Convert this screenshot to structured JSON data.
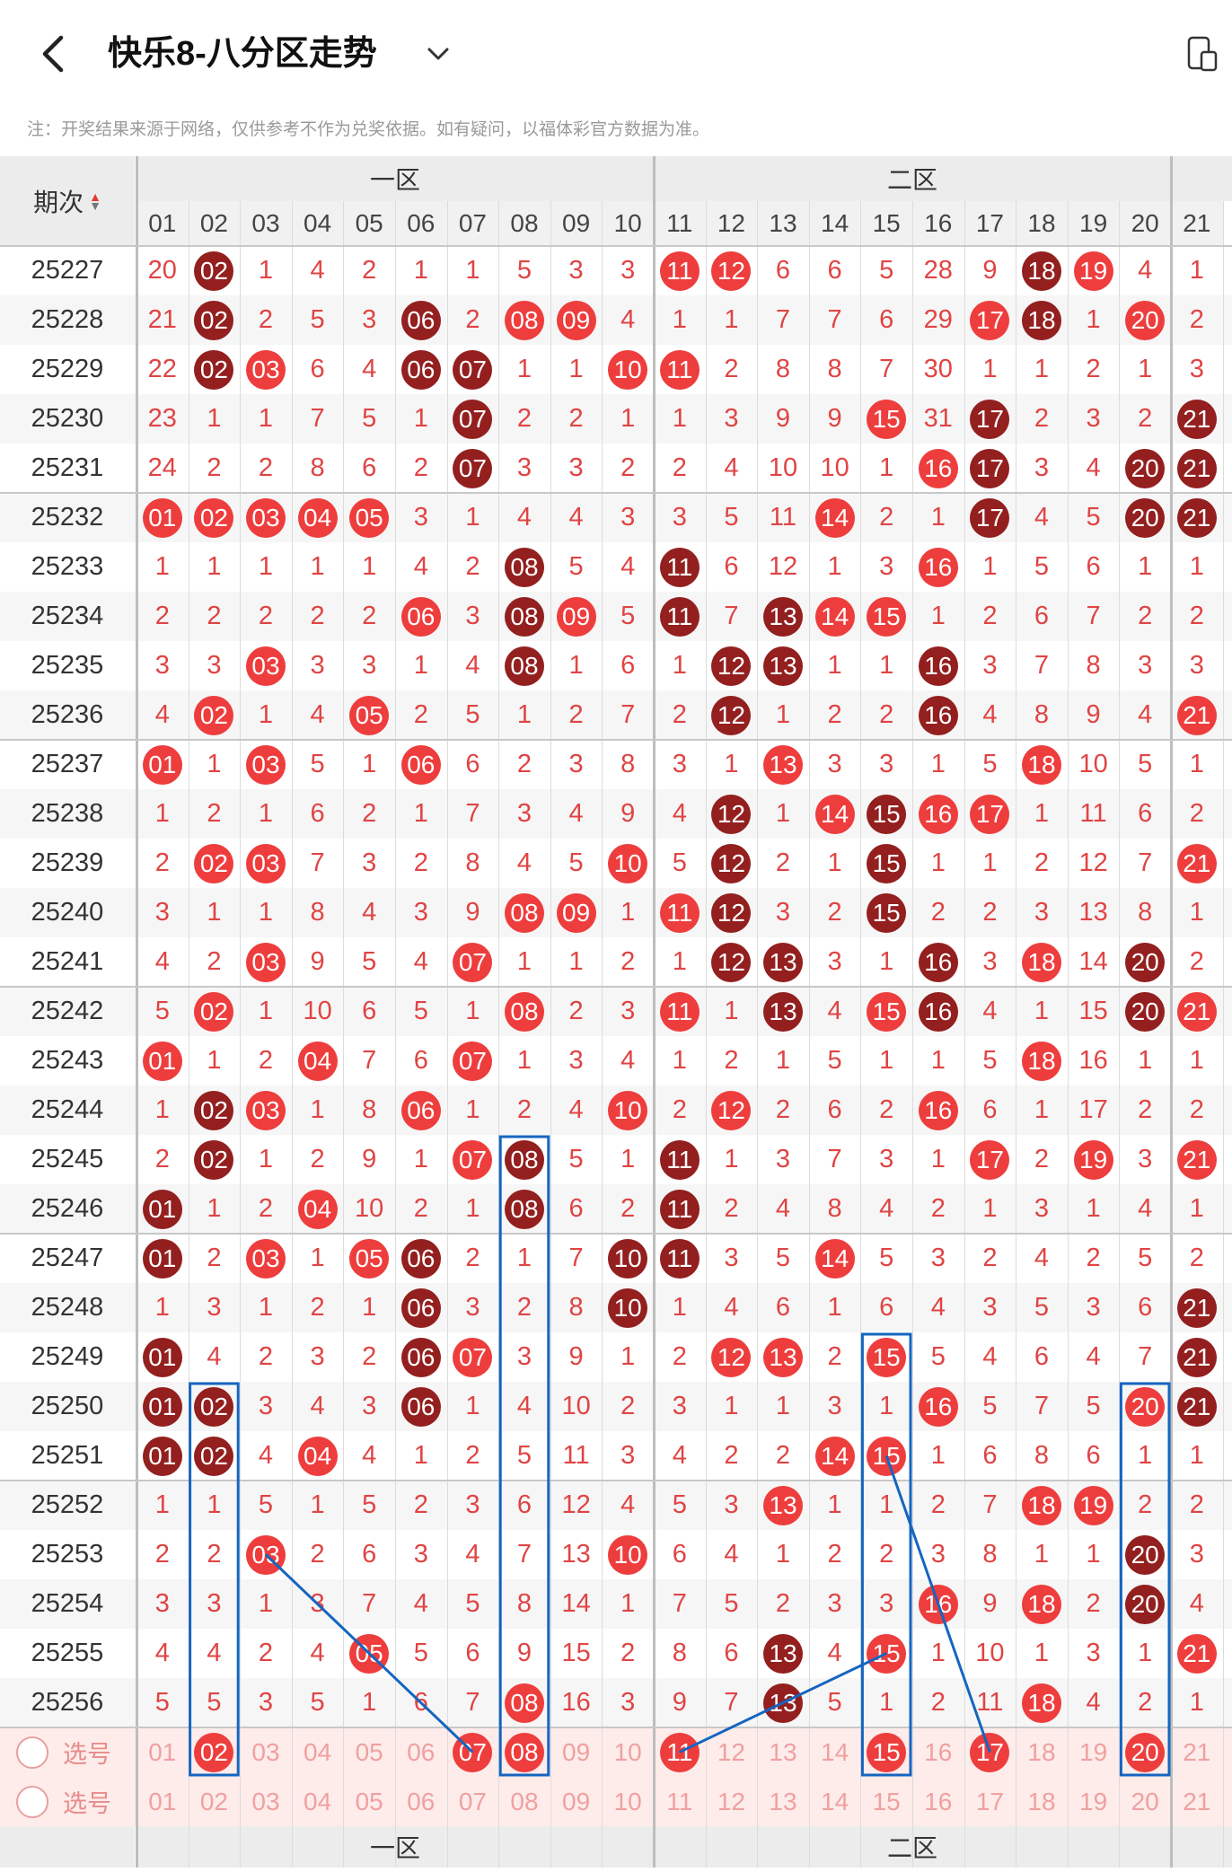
{
  "header": {
    "title": "快乐8-八分区走势",
    "note": "注：开奖结果来源于网络，仅供参考不作为兑奖依据。如有疑问，以福体彩官方数据为准。"
  },
  "table": {
    "period_header": "期次",
    "zones": [
      "一区",
      "二区"
    ],
    "columns": [
      "01",
      "02",
      "03",
      "04",
      "05",
      "06",
      "07",
      "08",
      "09",
      "10",
      "11",
      "12",
      "13",
      "14",
      "15",
      "16",
      "17",
      "18",
      "19",
      "20",
      "21"
    ],
    "rows": [
      {
        "period": "25227",
        "cells": [
          "20",
          "02",
          "1",
          "4",
          "2",
          "1",
          "1",
          "5",
          "3",
          "3",
          "11",
          "12",
          "6",
          "6",
          "5",
          "28",
          "9",
          "18",
          "19",
          "4",
          "1"
        ]
      },
      {
        "period": "25228",
        "cells": [
          "21",
          "02",
          "2",
          "5",
          "3",
          "06",
          "2",
          "08",
          "09",
          "4",
          "1",
          "1",
          "7",
          "7",
          "6",
          "29",
          "17",
          "18",
          "1",
          "20",
          "2"
        ]
      },
      {
        "period": "25229",
        "cells": [
          "22",
          "02",
          "03",
          "6",
          "4",
          "06",
          "07",
          "1",
          "1",
          "10",
          "11",
          "2",
          "8",
          "8",
          "7",
          "30",
          "1",
          "1",
          "2",
          "1",
          "3"
        ]
      },
      {
        "period": "25230",
        "cells": [
          "23",
          "1",
          "1",
          "7",
          "5",
          "1",
          "07",
          "2",
          "2",
          "1",
          "1",
          "3",
          "9",
          "9",
          "15",
          "31",
          "17",
          "2",
          "3",
          "2",
          "21"
        ]
      },
      {
        "period": "25231",
        "cells": [
          "24",
          "2",
          "2",
          "8",
          "6",
          "2",
          "07",
          "3",
          "3",
          "2",
          "2",
          "4",
          "10",
          "10",
          "1",
          "16",
          "17",
          "3",
          "4",
          "20",
          "21"
        ]
      },
      {
        "period": "25232",
        "cells": [
          "01",
          "02",
          "03",
          "04",
          "05",
          "3",
          "1",
          "4",
          "4",
          "3",
          "3",
          "5",
          "11",
          "14",
          "2",
          "1",
          "17",
          "4",
          "5",
          "20",
          "21"
        ]
      },
      {
        "period": "25233",
        "cells": [
          "1",
          "1",
          "1",
          "1",
          "1",
          "4",
          "2",
          "08",
          "5",
          "4",
          "11",
          "6",
          "12",
          "1",
          "3",
          "16",
          "1",
          "5",
          "6",
          "1",
          "1"
        ]
      },
      {
        "period": "25234",
        "cells": [
          "2",
          "2",
          "2",
          "2",
          "2",
          "06",
          "3",
          "08",
          "09",
          "5",
          "11",
          "7",
          "13",
          "14",
          "15",
          "1",
          "2",
          "6",
          "7",
          "2",
          "2"
        ]
      },
      {
        "period": "25235",
        "cells": [
          "3",
          "3",
          "03",
          "3",
          "3",
          "1",
          "4",
          "08",
          "1",
          "6",
          "1",
          "12",
          "13",
          "1",
          "1",
          "16",
          "3",
          "7",
          "8",
          "3",
          "3"
        ]
      },
      {
        "period": "25236",
        "cells": [
          "4",
          "02",
          "1",
          "4",
          "05",
          "2",
          "5",
          "1",
          "2",
          "7",
          "2",
          "12",
          "1",
          "2",
          "2",
          "16",
          "4",
          "8",
          "9",
          "4",
          "21"
        ]
      },
      {
        "period": "25237",
        "cells": [
          "01",
          "1",
          "03",
          "5",
          "1",
          "06",
          "6",
          "2",
          "3",
          "8",
          "3",
          "1",
          "13",
          "3",
          "3",
          "1",
          "5",
          "18",
          "10",
          "5",
          "1"
        ]
      },
      {
        "period": "25238",
        "cells": [
          "1",
          "2",
          "1",
          "6",
          "2",
          "1",
          "7",
          "3",
          "4",
          "9",
          "4",
          "12",
          "1",
          "14",
          "15",
          "16",
          "17",
          "1",
          "11",
          "6",
          "2"
        ]
      },
      {
        "period": "25239",
        "cells": [
          "2",
          "02",
          "03",
          "7",
          "3",
          "2",
          "8",
          "4",
          "5",
          "10",
          "5",
          "12",
          "2",
          "1",
          "15",
          "1",
          "1",
          "2",
          "12",
          "7",
          "21"
        ]
      },
      {
        "period": "25240",
        "cells": [
          "3",
          "1",
          "1",
          "8",
          "4",
          "3",
          "9",
          "08",
          "09",
          "1",
          "11",
          "12",
          "3",
          "2",
          "15",
          "2",
          "2",
          "3",
          "13",
          "8",
          "1"
        ]
      },
      {
        "period": "25241",
        "cells": [
          "4",
          "2",
          "03",
          "9",
          "5",
          "4",
          "07",
          "1",
          "1",
          "2",
          "1",
          "12",
          "13",
          "3",
          "1",
          "16",
          "3",
          "18",
          "14",
          "20",
          "2"
        ]
      },
      {
        "period": "25242",
        "cells": [
          "5",
          "02",
          "1",
          "10",
          "6",
          "5",
          "1",
          "08",
          "2",
          "3",
          "11",
          "1",
          "13",
          "4",
          "15",
          "16",
          "4",
          "1",
          "15",
          "20",
          "21"
        ]
      },
      {
        "period": "25243",
        "cells": [
          "01",
          "1",
          "2",
          "04",
          "7",
          "6",
          "07",
          "1",
          "3",
          "4",
          "1",
          "2",
          "1",
          "5",
          "1",
          "1",
          "5",
          "18",
          "16",
          "1",
          "1"
        ]
      },
      {
        "period": "25244",
        "cells": [
          "1",
          "02",
          "03",
          "1",
          "8",
          "06",
          "1",
          "2",
          "4",
          "10",
          "2",
          "12",
          "2",
          "6",
          "2",
          "16",
          "6",
          "1",
          "17",
          "2",
          "2"
        ]
      },
      {
        "period": "25245",
        "cells": [
          "2",
          "02",
          "1",
          "2",
          "9",
          "1",
          "07",
          "08",
          "5",
          "1",
          "11",
          "1",
          "3",
          "7",
          "3",
          "1",
          "17",
          "2",
          "19",
          "3",
          "21"
        ]
      },
      {
        "period": "25246",
        "cells": [
          "01",
          "1",
          "2",
          "04",
          "10",
          "2",
          "1",
          "08",
          "6",
          "2",
          "11",
          "2",
          "4",
          "8",
          "4",
          "2",
          "1",
          "3",
          "1",
          "4",
          "1"
        ]
      },
      {
        "period": "25247",
        "cells": [
          "01",
          "2",
          "03",
          "1",
          "05",
          "06",
          "2",
          "1",
          "7",
          "10",
          "11",
          "3",
          "5",
          "14",
          "5",
          "3",
          "2",
          "4",
          "2",
          "5",
          "2"
        ]
      },
      {
        "period": "25248",
        "cells": [
          "1",
          "3",
          "1",
          "2",
          "1",
          "06",
          "3",
          "2",
          "8",
          "10",
          "1",
          "4",
          "6",
          "1",
          "6",
          "4",
          "3",
          "5",
          "3",
          "6",
          "21"
        ]
      },
      {
        "period": "25249",
        "cells": [
          "01",
          "4",
          "2",
          "3",
          "2",
          "06",
          "07",
          "3",
          "9",
          "1",
          "2",
          "12",
          "13",
          "2",
          "15",
          "5",
          "4",
          "6",
          "4",
          "7",
          "21"
        ]
      },
      {
        "period": "25250",
        "cells": [
          "01",
          "02",
          "3",
          "4",
          "3",
          "06",
          "1",
          "4",
          "10",
          "2",
          "3",
          "1",
          "1",
          "3",
          "1",
          "16",
          "5",
          "7",
          "5",
          "20",
          "21"
        ]
      },
      {
        "period": "25251",
        "cells": [
          "01",
          "02",
          "4",
          "04",
          "4",
          "1",
          "2",
          "5",
          "11",
          "3",
          "4",
          "2",
          "2",
          "14",
          "15",
          "1",
          "6",
          "8",
          "6",
          "1",
          "1"
        ]
      },
      {
        "period": "25252",
        "cells": [
          "1",
          "1",
          "5",
          "1",
          "5",
          "2",
          "3",
          "6",
          "12",
          "4",
          "5",
          "3",
          "13",
          "1",
          "1",
          "2",
          "7",
          "18",
          "19",
          "2",
          "2"
        ]
      },
      {
        "period": "25253",
        "cells": [
          "2",
          "2",
          "03",
          "2",
          "6",
          "3",
          "4",
          "7",
          "13",
          "10",
          "6",
          "4",
          "1",
          "2",
          "2",
          "3",
          "8",
          "1",
          "1",
          "20",
          "3"
        ]
      },
      {
        "period": "25254",
        "cells": [
          "3",
          "3",
          "1",
          "3",
          "7",
          "4",
          "5",
          "8",
          "14",
          "1",
          "7",
          "5",
          "2",
          "3",
          "3",
          "16",
          "9",
          "18",
          "2",
          "20",
          "4"
        ]
      },
      {
        "period": "25255",
        "cells": [
          "4",
          "4",
          "2",
          "4",
          "05",
          "5",
          "6",
          "9",
          "15",
          "2",
          "8",
          "6",
          "13",
          "4",
          "15",
          "1",
          "10",
          "1",
          "3",
          "1",
          "21"
        ]
      },
      {
        "period": "25256",
        "cells": [
          "5",
          "5",
          "3",
          "5",
          "1",
          "6",
          "7",
          "08",
          "16",
          "3",
          "9",
          "7",
          "13",
          "5",
          "1",
          "2",
          "11",
          "18",
          "4",
          "2",
          "1"
        ]
      }
    ],
    "select_rows": [
      {
        "label": "选号",
        "nums": [
          "01",
          "02",
          "03",
          "04",
          "05",
          "06",
          "07",
          "08",
          "09",
          "10",
          "11",
          "12",
          "13",
          "14",
          "15",
          "16",
          "17",
          "18",
          "19",
          "20",
          "21"
        ],
        "picked": [
          "02",
          "07",
          "08",
          "11",
          "15",
          "17",
          "20"
        ]
      },
      {
        "label": "选号",
        "nums": [
          "01",
          "02",
          "03",
          "04",
          "05",
          "06",
          "07",
          "08",
          "09",
          "10",
          "11",
          "12",
          "13",
          "14",
          "15",
          "16",
          "17",
          "18",
          "19",
          "20",
          "21"
        ],
        "picked": []
      }
    ]
  },
  "colors": {
    "ball_red": "#ee3d3d",
    "ball_dark": "#931f1f",
    "miss_text": "#e04444",
    "highlight_blue": "#1565c0"
  }
}
